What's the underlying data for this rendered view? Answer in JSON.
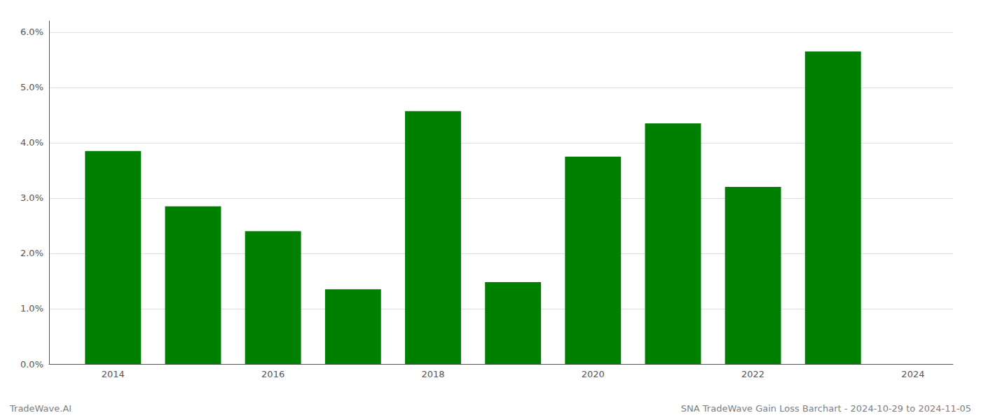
{
  "chart_data": {
    "type": "bar",
    "x": [
      2014,
      2015,
      2016,
      2017,
      2018,
      2019,
      2020,
      2021,
      2022,
      2023
    ],
    "values": [
      0.0385,
      0.0285,
      0.024,
      0.0135,
      0.0457,
      0.0148,
      0.0375,
      0.0435,
      0.032,
      0.0565
    ],
    "color": "#008000",
    "xlim": [
      2013.2,
      2024.5
    ],
    "xticks": [
      2014,
      2016,
      2018,
      2020,
      2022,
      2024
    ],
    "ylim": [
      0.0,
      0.062
    ],
    "yticks": [
      {
        "value": 0.0,
        "label": "0.0%"
      },
      {
        "value": 0.01,
        "label": "1.0%"
      },
      {
        "value": 0.02,
        "label": "2.0%"
      },
      {
        "value": 0.03,
        "label": "3.0%"
      },
      {
        "value": 0.04,
        "label": "4.0%"
      },
      {
        "value": 0.05,
        "label": "5.0%"
      },
      {
        "value": 0.06,
        "label": "6.0%"
      }
    ],
    "grid": true,
    "annotations": [
      "TradeWave.AI",
      "SNA TradeWave Gain Loss Barchart - 2024-10-29 to 2024-11-05"
    ]
  }
}
